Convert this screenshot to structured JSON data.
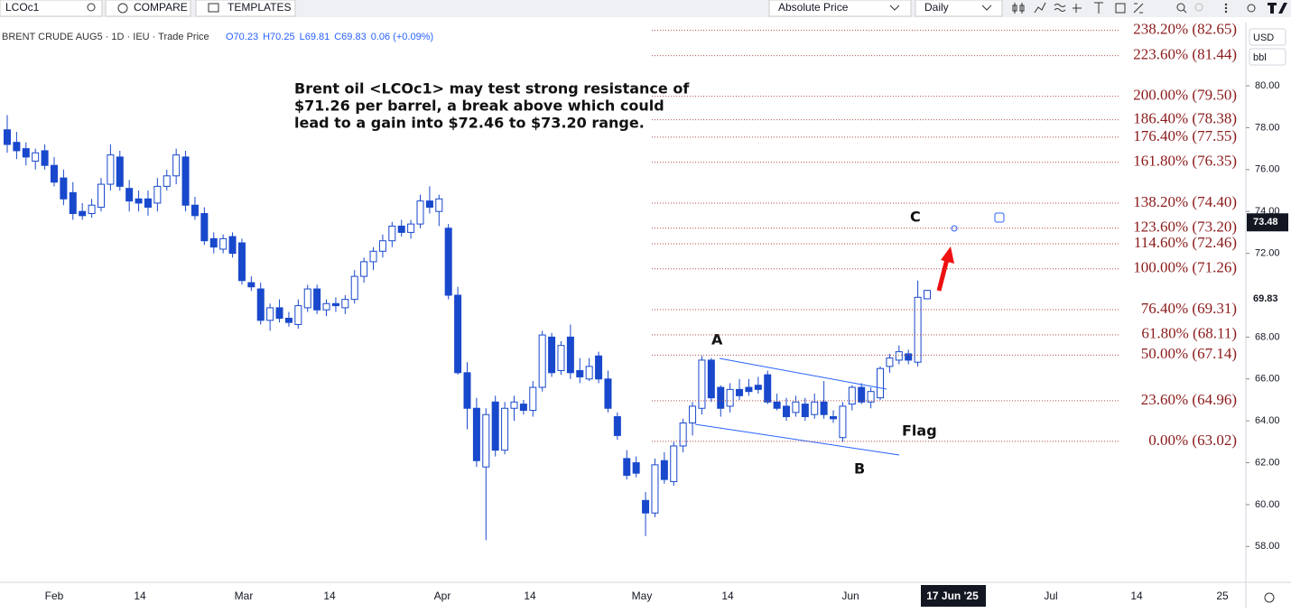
{
  "toolbar": {
    "symbol": "LCOc1",
    "compare": "COMPARE",
    "templates": "TEMPLATES",
    "scale": "Absolute Price",
    "interval": "Daily"
  },
  "chart_data": {
    "type": "candlestick",
    "title": "BRENT CRUDE AUG5 · 1D · IEU · Trade Price",
    "quote": [
      "O70.23",
      "H70.25",
      "L69.81",
      "C69.83",
      "0.06 (+0.09%)"
    ],
    "open": [
      77.9,
      77.3,
      77.0,
      76.4,
      76.9,
      76.2,
      75.6,
      74.9,
      74.0,
      73.9,
      74.2,
      75.3,
      76.6,
      75.1,
      74.6,
      74.6,
      74.4,
      75.2,
      75.7,
      76.6,
      74.3,
      73.9,
      72.7,
      72.2,
      72.8,
      72.5,
      70.6,
      70.3,
      68.8,
      69.4,
      68.9,
      68.6,
      69.4,
      70.3,
      69.3,
      69.6,
      69.4,
      69.8,
      70.9,
      71.6,
      72.1,
      72.6,
      73.3,
      73.0,
      73.4,
      74.5,
      74.0,
      73.2,
      70.0,
      66.3,
      64.6,
      61.8,
      64.9,
      62.6,
      64.6,
      64.8,
      64.5,
      65.6,
      68.0,
      66.4,
      68.0,
      66.4,
      66.0,
      67.1,
      66.0,
      64.2,
      62.2,
      62.0,
      60.2,
      59.6,
      62.1,
      61.1,
      62.8,
      63.9,
      64.6,
      66.9,
      65.6,
      64.7,
      65.5,
      65.6,
      65.7,
      66.2,
      64.9,
      64.7,
      64.4,
      64.8,
      64.3,
      64.9,
      64.2,
      63.2,
      64.8,
      65.6,
      64.9,
      65.1,
      66.6,
      66.9,
      67.2,
      66.8,
      70.23
    ],
    "high": [
      78.6,
      77.8,
      77.3,
      77.0,
      77.2,
      76.6,
      76.0,
      75.4,
      74.4,
      74.6,
      75.6,
      77.2,
      76.9,
      75.5,
      75.0,
      75.0,
      75.6,
      76.0,
      77.0,
      76.9,
      74.7,
      74.2,
      73.0,
      72.9,
      73.0,
      72.7,
      70.9,
      70.6,
      69.6,
      69.8,
      69.2,
      69.8,
      70.5,
      70.5,
      69.8,
      69.9,
      70.0,
      71.2,
      71.8,
      72.3,
      72.9,
      73.5,
      73.6,
      73.6,
      74.8,
      75.2,
      74.8,
      73.4,
      70.4,
      66.8,
      65.1,
      64.6,
      65.2,
      64.9,
      65.2,
      65.0,
      65.9,
      68.3,
      68.2,
      67.8,
      68.6,
      67.0,
      67.0,
      67.3,
      66.4,
      64.4,
      62.6,
      62.3,
      60.6,
      62.2,
      62.5,
      63.0,
      64.1,
      64.9,
      67.1,
      67.0,
      65.7,
      65.8,
      66.0,
      66.0,
      66.1,
      66.4,
      65.3,
      65.1,
      65.2,
      65.1,
      65.3,
      65.9,
      64.5,
      64.9,
      65.7,
      65.8,
      65.6,
      66.6,
      67.2,
      67.6,
      67.4,
      70.7,
      70.25
    ],
    "low": [
      76.8,
      76.5,
      76.2,
      76.0,
      76.0,
      75.2,
      74.3,
      73.6,
      73.6,
      73.7,
      74.0,
      75.0,
      75.0,
      74.0,
      74.0,
      73.8,
      74.0,
      75.0,
      75.3,
      74.0,
      73.6,
      72.4,
      72.0,
      72.0,
      71.8,
      70.5,
      70.2,
      68.6,
      68.3,
      68.7,
      68.5,
      68.4,
      69.2,
      69.1,
      69.0,
      69.2,
      69.1,
      69.6,
      70.6,
      71.2,
      71.8,
      72.3,
      72.8,
      72.7,
      73.2,
      73.9,
      73.3,
      69.8,
      66.2,
      63.6,
      61.8,
      58.3,
      62.3,
      62.4,
      64.0,
      64.3,
      64.2,
      65.4,
      66.1,
      66.2,
      66.0,
      65.8,
      65.9,
      65.8,
      64.4,
      63.1,
      61.2,
      61.3,
      58.5,
      59.4,
      61.0,
      60.9,
      62.5,
      63.3,
      64.3,
      64.9,
      64.2,
      64.4,
      65.0,
      65.2,
      65.3,
      64.8,
      64.5,
      64.0,
      64.2,
      64.0,
      64.1,
      64.1,
      63.9,
      63.0,
      64.5,
      64.8,
      64.6,
      65.0,
      66.3,
      66.7,
      66.7,
      66.6,
      69.81
    ],
    "close": [
      77.2,
      76.9,
      76.6,
      76.8,
      76.2,
      75.4,
      74.6,
      73.9,
      73.8,
      74.3,
      75.3,
      76.7,
      75.2,
      74.5,
      74.4,
      74.2,
      75.2,
      75.7,
      76.7,
      74.3,
      73.8,
      72.6,
      72.3,
      72.7,
      72.0,
      70.7,
      70.4,
      68.8,
      69.4,
      68.9,
      68.7,
      69.5,
      70.3,
      69.3,
      69.6,
      69.5,
      69.8,
      70.9,
      71.6,
      72.1,
      72.6,
      73.3,
      73.0,
      73.4,
      74.5,
      74.2,
      74.6,
      70.0,
      66.3,
      64.6,
      62.1,
      64.3,
      62.6,
      64.6,
      64.9,
      64.5,
      65.6,
      68.1,
      66.3,
      67.6,
      66.3,
      66.1,
      66.6,
      66.0,
      64.6,
      63.3,
      61.4,
      61.5,
      59.6,
      61.9,
      61.2,
      62.8,
      63.9,
      64.7,
      66.9,
      65.1,
      64.6,
      65.5,
      65.2,
      65.4,
      65.5,
      64.9,
      64.6,
      64.2,
      64.9,
      64.2,
      64.9,
      64.3,
      64.1,
      64.7,
      65.6,
      64.9,
      65.4,
      66.5,
      67.0,
      67.3,
      66.9,
      69.9,
      69.83
    ],
    "color": "#1848cc",
    "ylim": [
      56.29,
      83.02
    ],
    "yticks": [
      {
        "value": 58,
        "label": "58.00"
      },
      {
        "value": 60,
        "label": "60.00"
      },
      {
        "value": 62,
        "label": "62.00"
      },
      {
        "value": 64,
        "label": "64.00"
      },
      {
        "value": 66,
        "label": "66.00"
      },
      {
        "value": 68,
        "label": "68.00"
      },
      {
        "value": 72,
        "label": "72.00"
      },
      {
        "value": 74,
        "label": "74.00"
      },
      {
        "value": 76,
        "label": "76.00"
      },
      {
        "value": 78,
        "label": "78.00"
      },
      {
        "value": 80,
        "label": "80.00"
      }
    ],
    "xticks": [
      "Feb",
      "14",
      "Mar",
      "14",
      "Apr",
      "14",
      "May",
      "14",
      "Jun",
      "17 Jun '25",
      "Jul",
      "14",
      "25"
    ],
    "currency": "USD",
    "unit": "bbl",
    "price_labels": [
      {
        "value": 73.48,
        "label": "73.48"
      },
      {
        "value": 69.83,
        "label": "69.83"
      }
    ],
    "fib_levels": [
      {
        "value": 82.65,
        "label": "238.20% (82.65)"
      },
      {
        "value": 81.44,
        "label": "223.60% (81.44)"
      },
      {
        "value": 79.5,
        "label": "200.00% (79.50)"
      },
      {
        "value": 78.38,
        "label": "186.40% (78.38)"
      },
      {
        "value": 77.55,
        "label": "176.40% (77.55)"
      },
      {
        "value": 76.35,
        "label": "161.80% (76.35)"
      },
      {
        "value": 74.4,
        "label": "138.20% (74.40)"
      },
      {
        "value": 73.2,
        "label": "123.60% (73.20)"
      },
      {
        "value": 72.46,
        "label": "114.60% (72.46)"
      },
      {
        "value": 71.26,
        "label": "100.00% (71.26)"
      },
      {
        "value": 69.31,
        "label": "76.40% (69.31)"
      },
      {
        "value": 68.11,
        "label": "61.80% (68.11)"
      },
      {
        "value": 67.14,
        "label": "50.00% (67.14)"
      },
      {
        "value": 64.96,
        "label": "23.60% (64.96)"
      },
      {
        "value": 63.02,
        "label": "0.00% (63.02)"
      }
    ],
    "annotation": [
      "Brent oil <LCOc1> may test strong resistance of",
      "$71.26 per barrel, a break above which could",
      "lead to a gain into $72.46 to $73.20 range."
    ],
    "points": [
      "A",
      "B",
      "C",
      "Flag"
    ]
  }
}
